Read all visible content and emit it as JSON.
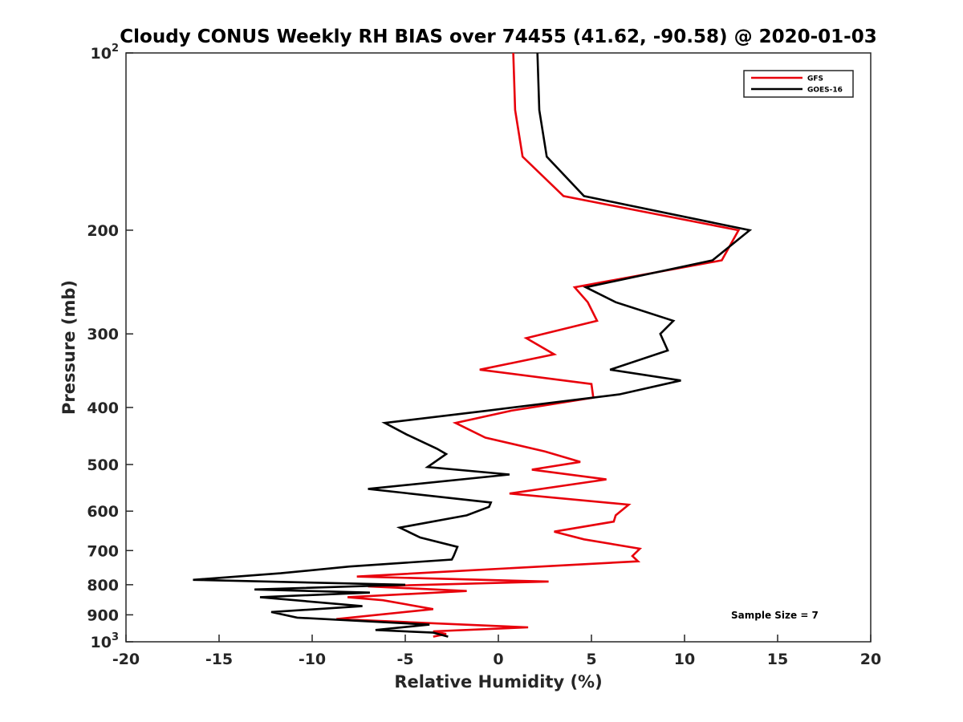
{
  "chart_data": {
    "type": "line",
    "title": "Cloudy CONUS Weekly RH BIAS over 74455 (41.62, -90.58) @ 2020-01-03",
    "xlabel": "Relative Humidity (%)",
    "ylabel": "Pressure (mb)",
    "xlim": [
      -20,
      20
    ],
    "ylim": [
      1000,
      100
    ],
    "y_scale": "log",
    "y_reversed": true,
    "grid": false,
    "legend_position": "top-right",
    "x_ticks": [
      "-20",
      "-15",
      "-10",
      "-5",
      "0",
      "5",
      "10",
      "15",
      "20"
    ],
    "x_tick_values": [
      -20,
      -15,
      -10,
      -5,
      0,
      5,
      10,
      15,
      20
    ],
    "y_ticks": [
      {
        "value": 100,
        "base": "10",
        "exp": "2"
      },
      {
        "value": 200,
        "label": "200"
      },
      {
        "value": 300,
        "label": "300"
      },
      {
        "value": 400,
        "label": "400"
      },
      {
        "value": 500,
        "label": "500"
      },
      {
        "value": 600,
        "label": "600"
      },
      {
        "value": 700,
        "label": "700"
      },
      {
        "value": 800,
        "label": "800"
      },
      {
        "value": 900,
        "label": "900"
      },
      {
        "value": 1000,
        "base": "10",
        "exp": "3"
      }
    ],
    "series": [
      {
        "name": "GFS",
        "color": "#e8000b",
        "points": [
          [
            0.8,
            100
          ],
          [
            0.9,
            125
          ],
          [
            1.3,
            150
          ],
          [
            3.5,
            175
          ],
          [
            12.9,
            200
          ],
          [
            12.0,
            225
          ],
          [
            4.1,
            250
          ],
          [
            4.8,
            265
          ],
          [
            5.3,
            285
          ],
          [
            1.5,
            305
          ],
          [
            3.0,
            325
          ],
          [
            -1.0,
            345
          ],
          [
            5.0,
            365
          ],
          [
            5.1,
            385
          ],
          [
            0.7,
            405
          ],
          [
            -2.3,
            425
          ],
          [
            -0.7,
            450
          ],
          [
            2.5,
            475
          ],
          [
            4.4,
            495
          ],
          [
            1.8,
            510
          ],
          [
            5.8,
            530
          ],
          [
            0.6,
            560
          ],
          [
            7.0,
            585
          ],
          [
            6.3,
            610
          ],
          [
            6.2,
            625
          ],
          [
            3.0,
            650
          ],
          [
            4.6,
            670
          ],
          [
            7.6,
            695
          ],
          [
            7.2,
            715
          ],
          [
            7.5,
            730
          ],
          [
            -1.8,
            757
          ],
          [
            -7.6,
            775
          ],
          [
            2.7,
            790
          ],
          [
            -7.0,
            805
          ],
          [
            -1.7,
            820
          ],
          [
            -8.1,
            840
          ],
          [
            -6.2,
            850
          ],
          [
            -3.5,
            880
          ],
          [
            -8.7,
            915
          ],
          [
            1.6,
            945
          ],
          [
            -3.5,
            960
          ],
          [
            -2.8,
            970
          ],
          [
            -3.5,
            980
          ]
        ]
      },
      {
        "name": "GOES-16",
        "color": "#000000",
        "points": [
          [
            2.1,
            100
          ],
          [
            2.2,
            125
          ],
          [
            2.6,
            150
          ],
          [
            4.6,
            175
          ],
          [
            13.5,
            200
          ],
          [
            11.5,
            225
          ],
          [
            4.7,
            250
          ],
          [
            6.3,
            265
          ],
          [
            9.4,
            285
          ],
          [
            8.7,
            300
          ],
          [
            9.1,
            320
          ],
          [
            6.0,
            345
          ],
          [
            9.8,
            360
          ],
          [
            6.5,
            380
          ],
          [
            -0.6,
            405
          ],
          [
            -6.1,
            425
          ],
          [
            -4.9,
            445
          ],
          [
            -3.3,
            470
          ],
          [
            -2.8,
            480
          ],
          [
            -3.8,
            505
          ],
          [
            0.6,
            520
          ],
          [
            -7.0,
            550
          ],
          [
            -0.4,
            580
          ],
          [
            -0.5,
            590
          ],
          [
            -1.7,
            610
          ],
          [
            -5.3,
            640
          ],
          [
            -4.2,
            665
          ],
          [
            -2.2,
            690
          ],
          [
            -2.4,
            715
          ],
          [
            -2.5,
            725
          ],
          [
            -8.0,
            745
          ],
          [
            -11.7,
            765
          ],
          [
            -16.4,
            785
          ],
          [
            -5.0,
            800
          ],
          [
            -13.1,
            815
          ],
          [
            -6.9,
            825
          ],
          [
            -12.8,
            840
          ],
          [
            -7.3,
            870
          ],
          [
            -12.2,
            890
          ],
          [
            -10.8,
            910
          ],
          [
            -3.7,
            935
          ],
          [
            -6.6,
            955
          ],
          [
            -3.5,
            965
          ],
          [
            -2.7,
            980
          ]
        ]
      }
    ],
    "annotations": [
      "Sample Size = 7"
    ]
  }
}
